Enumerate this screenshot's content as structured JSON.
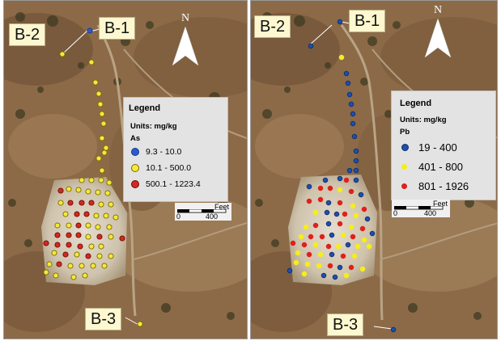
{
  "panels": [
    {
      "id": "as",
      "labels": {
        "b1": "B-1",
        "b2": "B-2",
        "b3": "B-3"
      },
      "north": "N",
      "legend": {
        "title": "Legend",
        "units": "Units: mg/kg",
        "element": "As",
        "classes": [
          {
            "label": "9.3 - 10.0",
            "color": "#2a5bd0",
            "stroke": "#163a8a"
          },
          {
            "label": "10.1 - 500.0",
            "color": "#f3e93c",
            "stroke": "#7a6a00"
          },
          {
            "label": "500.1 - 1223.4",
            "color": "#d7271f",
            "stroke": "#6a0d08"
          }
        ]
      },
      "scale": {
        "unit": "Feet",
        "start": "0",
        "end": "400"
      }
    },
    {
      "id": "pb",
      "labels": {
        "b1": "B-1",
        "b2": "B-2",
        "b3": "B-3"
      },
      "north": "N",
      "legend": {
        "title": "Legend",
        "units": "Units: mg/kg",
        "element": "Pb",
        "classes": [
          {
            "label": "19 - 400",
            "color": "#1c4fb0",
            "stroke": "#0f2d6b"
          },
          {
            "label": "401 - 800",
            "color": "#f5ee1a",
            "stroke": "#f5ee1a"
          },
          {
            "label": "801 - 1926",
            "color": "#e0201a",
            "stroke": "#e0201a"
          }
        ]
      },
      "scale": {
        "unit": "Feet",
        "start": "0",
        "end": "400"
      }
    }
  ]
}
